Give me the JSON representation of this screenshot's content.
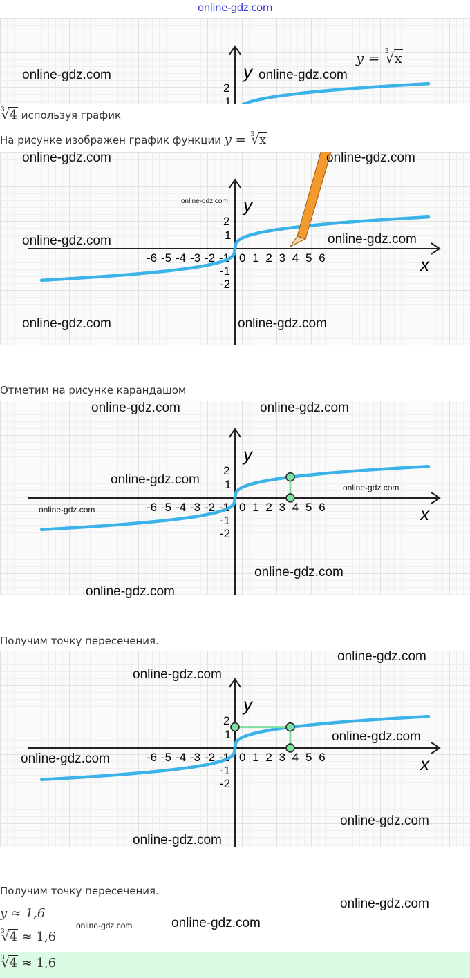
{
  "header": {
    "watermark": "online-gdz.com"
  },
  "watermark": "online-gdz.com",
  "intro": {
    "radicand": "4",
    "index": "3",
    "text": "используя график"
  },
  "step1": {
    "text": "На рисунке изображен график функции",
    "formula_lhs": "y =",
    "formula_var": "x"
  },
  "step2": {
    "text": "Отметим на рисунке карандашом"
  },
  "step3": {
    "text": "Получим точку пересечения."
  },
  "step4": {
    "text": "Получим точку пересечения."
  },
  "result": {
    "y_line": "y ≈ 1,6",
    "root_rhs": "≈ 1,6",
    "answer_rhs": "≈ 1,6"
  },
  "graph": {
    "function_label_lhs": "y =",
    "function_label_var": "x",
    "x_axis_label": "x",
    "y_axis_label": "y",
    "x_ticks_negative": [
      "-6",
      "-5",
      "-4",
      "-3",
      "-2",
      "-1"
    ],
    "x_ticks_positive": [
      "0",
      "1",
      "2",
      "3",
      "4",
      "5",
      "6"
    ],
    "y_ticks": [
      "2",
      "1",
      "-1",
      "-2"
    ],
    "curve_color": "#3bb3e8",
    "marker_color": "#7de0a0",
    "pencil_color": "#f29a2e",
    "marked_x": 4,
    "marked_y": 1.6
  }
}
